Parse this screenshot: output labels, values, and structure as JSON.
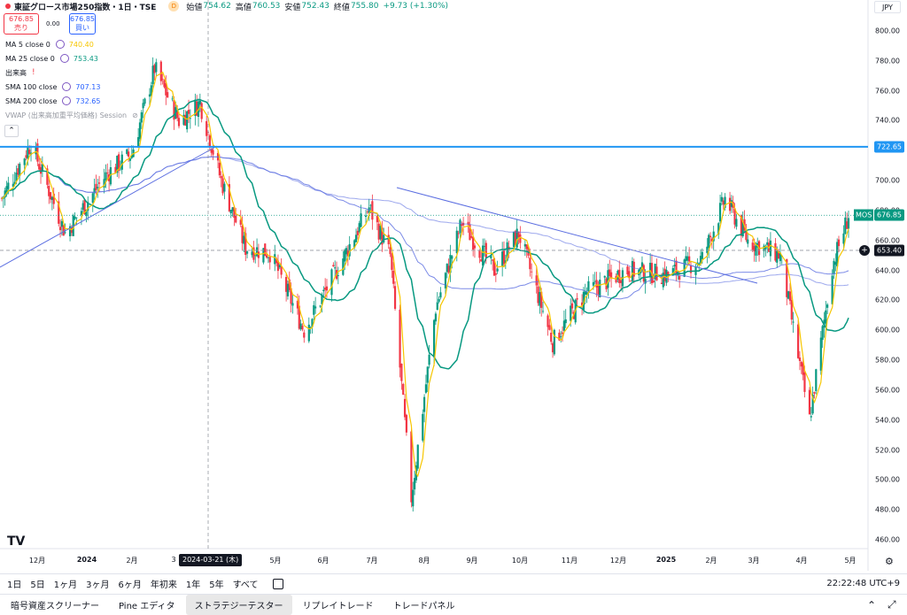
{
  "header": {
    "symbol": "東証グロース市場250指数・1日・TSE",
    "badge": "D",
    "open_label": "始値",
    "open": "754.62",
    "high_label": "高値",
    "high": "760.53",
    "low_label": "安値",
    "low": "752.43",
    "close_label": "終値",
    "close": "755.80",
    "change": "+9.73 (+1.30%)"
  },
  "trade": {
    "sell_price": "676.85",
    "sell_label": "売り",
    "spread": "0.00",
    "buy_price": "676.85",
    "buy_label": "買い"
  },
  "indicators": [
    {
      "label": "MA 5 close 0",
      "value": "740.40",
      "color": "#f7c600"
    },
    {
      "label": "MA 25 close 0",
      "value": "753.43",
      "color": "#089981"
    },
    {
      "label": "出来高",
      "value": "",
      "color": "#f23645"
    },
    {
      "label": "SMA 100 close",
      "value": "707.13",
      "color": "#2962ff"
    },
    {
      "label": "SMA 200 close",
      "value": "732.65",
      "color": "#2962ff"
    },
    {
      "label": "VWAP (出来高加重平均価格) Session",
      "value": "",
      "color": "#9598a1"
    }
  ],
  "currency": "JPY",
  "price_axis": [
    "800.00",
    "780.00",
    "760.00",
    "740.00",
    "720.00",
    "700.00",
    "680.00",
    "660.00",
    "640.00",
    "620.00",
    "600.00",
    "580.00",
    "560.00",
    "540.00",
    "520.00",
    "500.00",
    "480.00",
    "460.00"
  ],
  "price_tags": {
    "line_value": "722.65",
    "mos_label": "MOS",
    "last": "676.85",
    "cross": "653.40"
  },
  "time_axis": [
    "12月",
    "2024",
    "2月",
    "3",
    "5月",
    "6月",
    "7月",
    "8月",
    "9月",
    "10月",
    "11月",
    "12月",
    "2025",
    "2月",
    "3月",
    "4月",
    "5月"
  ],
  "crosshair_date": "2024-03-21 (木)",
  "timeframes": [
    "1日",
    "5日",
    "1ヶ月",
    "3ヶ月",
    "6ヶ月",
    "年初来",
    "1年",
    "5年",
    "すべて"
  ],
  "clock": "22:22:48 UTC+9",
  "bottom_tabs": [
    "暗号資産スクリーナー",
    "Pine エディタ",
    "ストラテジーテスター",
    "リプレイトレード",
    "トレードパネル"
  ],
  "colors": {
    "up": "#089981",
    "down": "#f23645",
    "hline": "#2196f3",
    "ma5": "#f7c600",
    "ma25": "#089981",
    "sma": "#5b6ee1"
  },
  "chart_data": {
    "type": "candlestick",
    "ylim": [
      455,
      810
    ],
    "period": "2023-11-27 to 2025-05-01",
    "horizontal_line": 722.65,
    "close_anchors": [
      {
        "date": "2023-11-27",
        "close": 688
      },
      {
        "date": "2023-12-15",
        "close": 725
      },
      {
        "date": "2024-01-05",
        "close": 665
      },
      {
        "date": "2024-01-31",
        "close": 705
      },
      {
        "date": "2024-02-15",
        "close": 718
      },
      {
        "date": "2024-02-29",
        "close": 775
      },
      {
        "date": "2024-03-15",
        "close": 740
      },
      {
        "date": "2024-03-28",
        "close": 752
      },
      {
        "date": "2024-04-10",
        "close": 700
      },
      {
        "date": "2024-04-25",
        "close": 655
      },
      {
        "date": "2024-05-10",
        "close": 652
      },
      {
        "date": "2024-05-31",
        "close": 600
      },
      {
        "date": "2024-06-20",
        "close": 640
      },
      {
        "date": "2024-07-10",
        "close": 682
      },
      {
        "date": "2024-07-23",
        "close": 650
      },
      {
        "date": "2024-08-05",
        "close": 488
      },
      {
        "date": "2024-08-20",
        "close": 615
      },
      {
        "date": "2024-09-05",
        "close": 672
      },
      {
        "date": "2024-09-25",
        "close": 640
      },
      {
        "date": "2024-10-10",
        "close": 665
      },
      {
        "date": "2024-10-31",
        "close": 592
      },
      {
        "date": "2024-11-20",
        "close": 625
      },
      {
        "date": "2024-12-15",
        "close": 640
      },
      {
        "date": "2025-01-10",
        "close": 637
      },
      {
        "date": "2025-01-31",
        "close": 648
      },
      {
        "date": "2025-02-14",
        "close": 688
      },
      {
        "date": "2025-02-28",
        "close": 660
      },
      {
        "date": "2025-03-20",
        "close": 650
      },
      {
        "date": "2025-04-07",
        "close": 540
      },
      {
        "date": "2025-04-21",
        "close": 643
      },
      {
        "date": "2025-05-01",
        "close": 676.85
      }
    ]
  }
}
